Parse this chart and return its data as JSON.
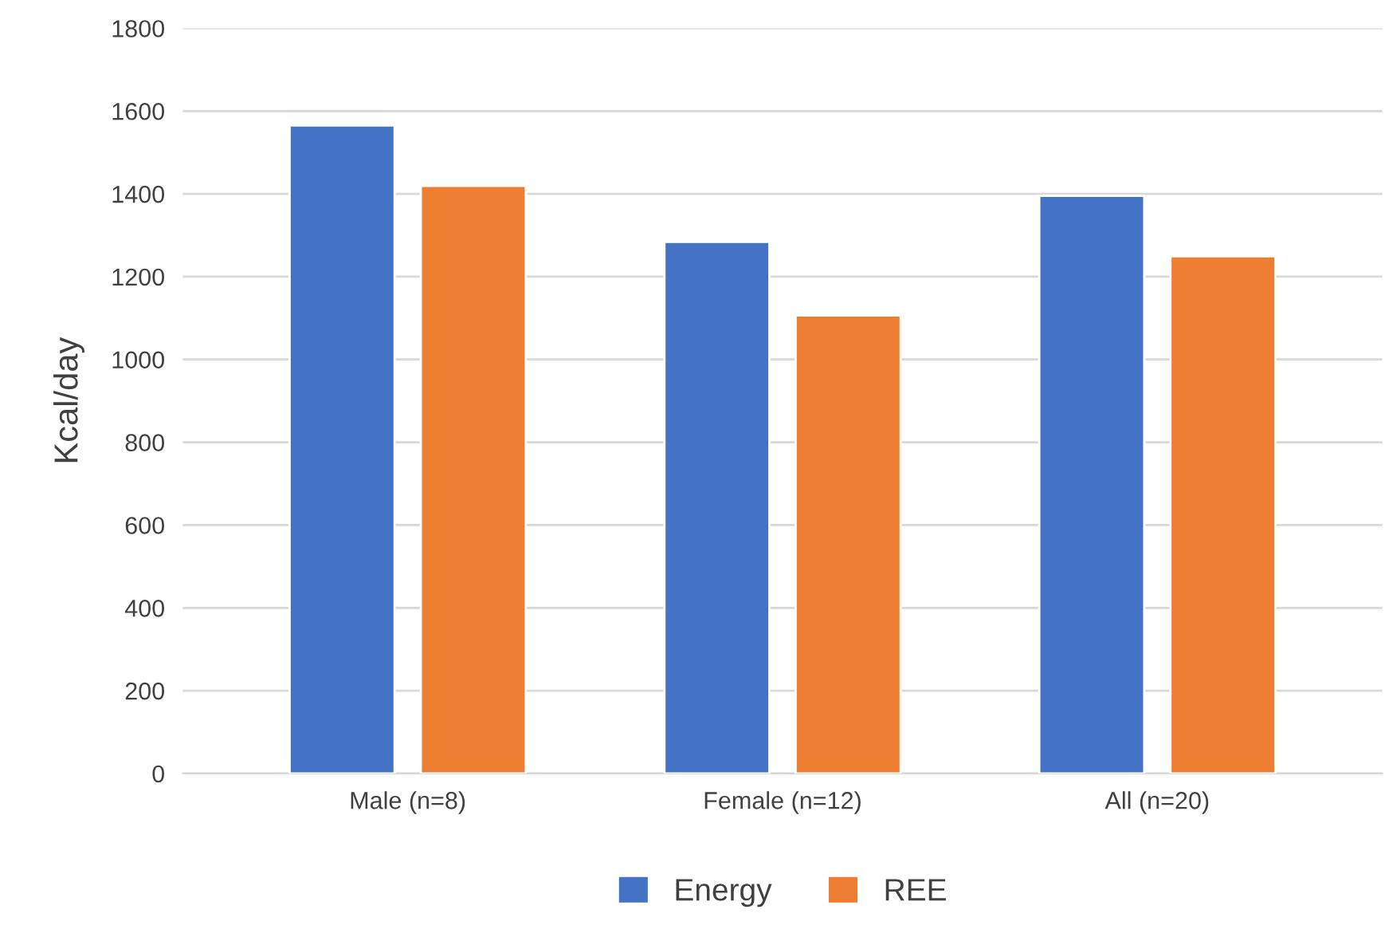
{
  "chart_data": {
    "type": "bar",
    "ylabel": "Kcal/day",
    "categories": [
      "Male (n=8)",
      "Female (n=12)",
      "All (n=20)"
    ],
    "series": [
      {
        "name": "Energy",
        "color": "#4472c4",
        "values": [
          1565,
          1284,
          1395
        ]
      },
      {
        "name": "REE",
        "color": "#ed7d31",
        "values": [
          1419,
          1106,
          1249
        ]
      }
    ],
    "ylim": [
      0,
      1800
    ],
    "yticks": [
      0,
      200,
      400,
      600,
      800,
      1000,
      1200,
      1400,
      1600,
      1800
    ],
    "grid": "y",
    "legend": "bottom"
  }
}
